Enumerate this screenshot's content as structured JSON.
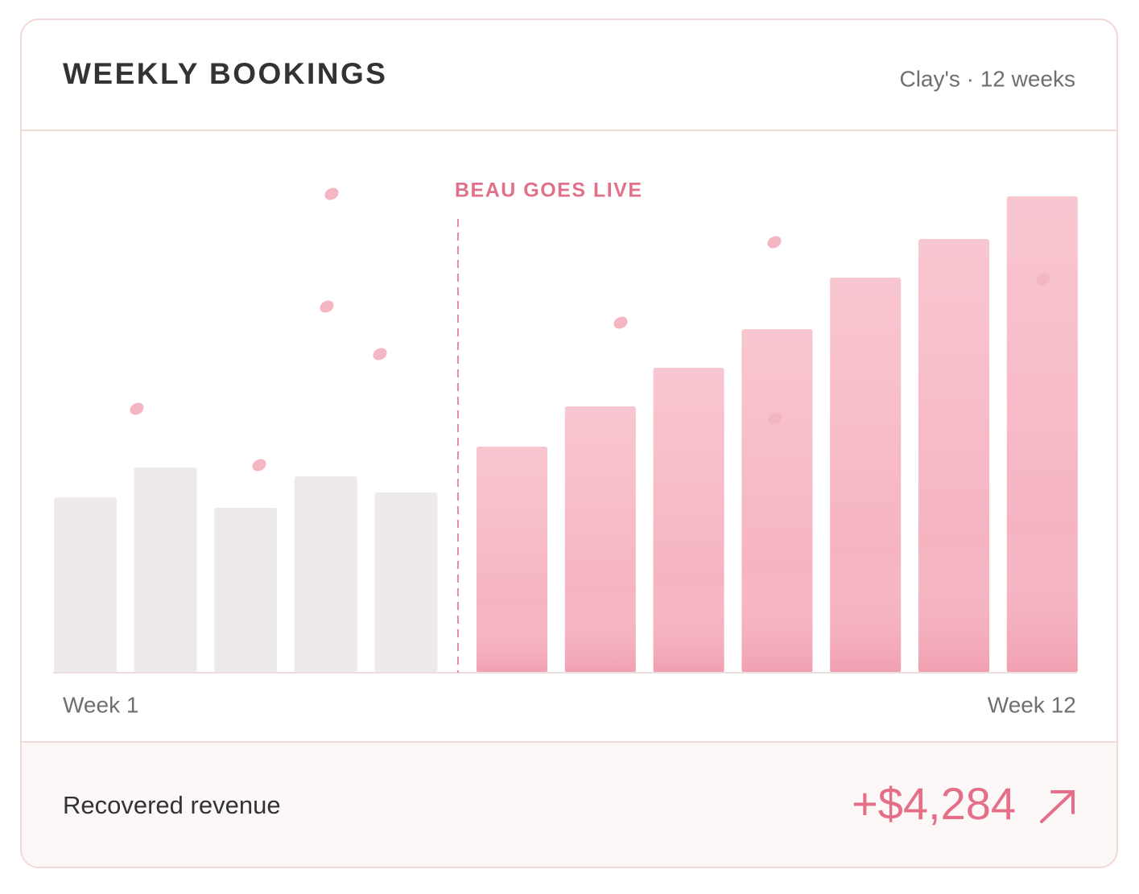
{
  "chart_data": {
    "type": "bar",
    "title": "WEEKLY BOOKINGS",
    "subtitle": "Clay's · 12 weeks",
    "annotation": "BEAU GOES LIVE",
    "categories": [
      "Week 1",
      null,
      null,
      null,
      null,
      null,
      null,
      null,
      null,
      null,
      null,
      "Week 12"
    ],
    "values": [
      218,
      255,
      205,
      244,
      224,
      281,
      331,
      379,
      427,
      491,
      539,
      592
    ],
    "colors": [
      "#eeeaea",
      "#eeeaea",
      "#eeeaea",
      "#eeeaea",
      "#eeeaea",
      "#f6b4c1",
      "#f6b4c1",
      "#f6b4c1",
      "#f6b4c1",
      "#f6b4c1",
      "#f6b4c1",
      "#f6b4c1"
    ],
    "ylim": [
      0,
      600
    ],
    "footer": {
      "label": "Recovered revenue",
      "value": "+$4,284"
    }
  }
}
